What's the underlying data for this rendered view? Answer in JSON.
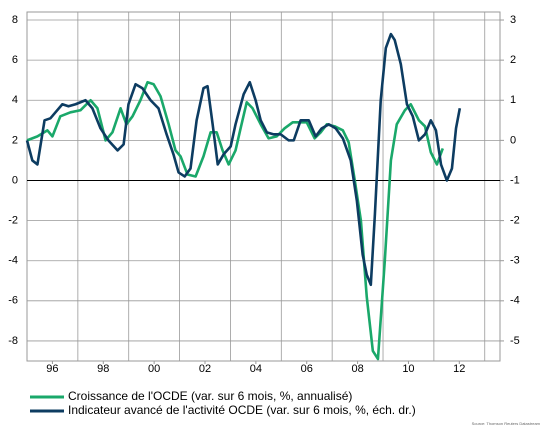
{
  "chart_data": {
    "type": "line",
    "xlim": [
      1995,
      2013.6
    ],
    "xticks": [
      {
        "value": 1996,
        "label": "96"
      },
      {
        "value": 1998,
        "label": "98"
      },
      {
        "value": 2000,
        "label": "00"
      },
      {
        "value": 2002,
        "label": "02"
      },
      {
        "value": 2004,
        "label": "04"
      },
      {
        "value": 2006,
        "label": "06"
      },
      {
        "value": 2008,
        "label": "08"
      },
      {
        "value": 2010,
        "label": "10"
      },
      {
        "value": 2012,
        "label": "12"
      }
    ],
    "xgrid": [
      1997,
      1999,
      2001,
      2003,
      2005,
      2007,
      2009,
      2011,
      2013
    ],
    "ylim": [
      -9,
      8.4
    ],
    "yticks": [
      8,
      6,
      4,
      2,
      0,
      -2,
      -4,
      -6,
      -8
    ],
    "y2lim": [
      -5.5,
      3.2
    ],
    "y2ticks": [
      3,
      2,
      1,
      0,
      -1,
      -2,
      -3,
      -4,
      -5
    ],
    "grid": true,
    "series": [
      {
        "name": "Croissance de l'OCDE (var. sur 6 mois, %, annualisé)",
        "color": "#1aa86a",
        "x": [
          1995.0,
          1995.41,
          1995.8,
          1996.0,
          1996.31,
          1996.71,
          1997.1,
          1997.5,
          1997.77,
          1998.09,
          1998.36,
          1998.68,
          1998.91,
          1999.15,
          1999.46,
          1999.74,
          1999.98,
          2000.25,
          2000.57,
          2000.84,
          2001.04,
          2001.31,
          2001.63,
          2001.94,
          2002.22,
          2002.46,
          2002.69,
          2002.93,
          2003.2,
          2003.4,
          2003.64,
          2003.87,
          2004.19,
          2004.5,
          2004.82,
          2005.13,
          2005.45,
          2005.76,
          2006.0,
          2006.31,
          2006.55,
          2006.79,
          2007.1,
          2007.42,
          2007.65,
          2007.89,
          2008.13,
          2008.36,
          2008.6,
          2008.8,
          2009.07,
          2009.31,
          2009.54,
          2009.86,
          2010.09,
          2010.41,
          2010.65,
          2010.88,
          2011.12,
          2011.35
        ],
        "values": [
          2.0,
          2.2,
          2.5,
          2.2,
          3.2,
          3.4,
          3.5,
          4.0,
          3.6,
          2.0,
          2.4,
          3.6,
          2.8,
          3.2,
          4.0,
          4.9,
          4.8,
          4.2,
          2.8,
          1.5,
          1.2,
          0.3,
          0.2,
          1.2,
          2.4,
          2.4,
          1.5,
          0.8,
          1.5,
          2.6,
          3.9,
          3.6,
          2.8,
          2.1,
          2.2,
          2.6,
          2.9,
          2.9,
          2.9,
          2.1,
          2.4,
          2.8,
          2.7,
          2.5,
          1.9,
          0.0,
          -2.0,
          -5.8,
          -8.5,
          -8.9,
          -4.0,
          1.0,
          2.8,
          3.5,
          3.8,
          3.0,
          2.7,
          1.4,
          0.8,
          1.6
        ]
      },
      {
        "name": "Indicateur avancé de l'activité OCDE (var. sur 6 mois, %, éch. dr.)",
        "color": "#0d3c61",
        "axis": "y2",
        "x": [
          1995.0,
          1995.21,
          1995.41,
          1995.69,
          1995.92,
          1996.12,
          1996.39,
          1996.63,
          1996.91,
          1997.3,
          1997.57,
          1997.89,
          1998.2,
          1998.56,
          1998.8,
          1998.99,
          1999.27,
          1999.54,
          1999.86,
          2000.17,
          2000.49,
          2000.76,
          2000.96,
          2001.2,
          2001.43,
          2001.67,
          2001.94,
          2002.1,
          2002.3,
          2002.5,
          2002.73,
          2003.01,
          2003.2,
          2003.52,
          2003.76,
          2003.99,
          2004.19,
          2004.43,
          2004.7,
          2004.98,
          2005.29,
          2005.49,
          2005.76,
          2006.08,
          2006.35,
          2006.59,
          2006.87,
          2007.14,
          2007.42,
          2007.73,
          2007.97,
          2008.2,
          2008.36,
          2008.52,
          2008.68,
          2008.91,
          2009.11,
          2009.31,
          2009.46,
          2009.7,
          2009.94,
          2010.17,
          2010.41,
          2010.65,
          2010.88,
          2011.08,
          2011.28,
          2011.51,
          2011.71,
          2011.87,
          2012.02
        ],
        "values": [
          0.0,
          -0.5,
          -0.6,
          0.5,
          0.55,
          0.7,
          0.9,
          0.85,
          0.9,
          1.0,
          0.8,
          0.3,
          0.0,
          -0.25,
          -0.1,
          0.9,
          1.4,
          1.3,
          1.0,
          0.8,
          0.15,
          -0.35,
          -0.8,
          -0.9,
          -0.7,
          0.5,
          1.3,
          1.35,
          0.4,
          -0.6,
          -0.35,
          -0.15,
          0.4,
          1.15,
          1.45,
          1.0,
          0.5,
          0.2,
          0.15,
          0.15,
          0.0,
          0.0,
          0.5,
          0.5,
          0.1,
          0.3,
          0.4,
          0.3,
          0.05,
          -0.5,
          -1.5,
          -2.85,
          -3.35,
          -3.6,
          -1.85,
          1.0,
          2.3,
          2.65,
          2.5,
          1.9,
          0.9,
          0.6,
          0.0,
          0.15,
          0.5,
          0.25,
          -0.6,
          -1.0,
          -0.7,
          0.3,
          0.8
        ]
      }
    ],
    "source": "Source: Thomson Reuters Datastream"
  }
}
